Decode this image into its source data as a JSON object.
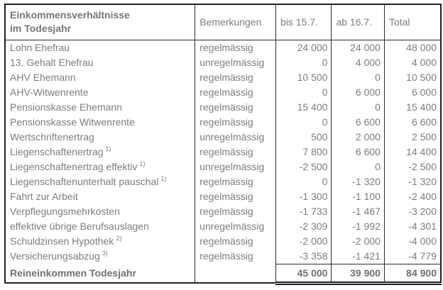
{
  "table": {
    "header": {
      "title_line1": "Einkommensverhältnisse",
      "title_line2": "im Todesjahr",
      "remarks": "Bemerkungen",
      "period1": "bis 15.7.",
      "period2": "ab 16.7.",
      "total": "Total"
    },
    "rows": [
      {
        "label": "Lohn Ehefrau",
        "sup": "",
        "remark": "regelmässig",
        "bis": "24 000",
        "ab": "24 000",
        "total": "48 000"
      },
      {
        "label": "13. Gehalt Ehefrau",
        "sup": "",
        "remark": "unregelmässig",
        "bis": "0",
        "ab": "4 000",
        "total": "4 000"
      },
      {
        "label": "AHV Ehemann",
        "sup": "",
        "remark": "regelmässig",
        "bis": "10 500",
        "ab": "0",
        "total": "10 500"
      },
      {
        "label": "AHV-Witwenrente",
        "sup": "",
        "remark": "regelmässig",
        "bis": "0",
        "ab": "6 000",
        "total": "6 000"
      },
      {
        "label": "Pensionskasse Ehemann",
        "sup": "",
        "remark": "regelmässig",
        "bis": "15 400",
        "ab": "0",
        "total": "15 400"
      },
      {
        "label": "Pensionskasse Witwenrente",
        "sup": "",
        "remark": "regelmässig",
        "bis": "0",
        "ab": "6 600",
        "total": "6 600"
      },
      {
        "label": "Wertschriftenertrag",
        "sup": "",
        "remark": "unregelmässig",
        "bis": "500",
        "ab": "2 000",
        "total": "2 500"
      },
      {
        "label": "Liegenschaftenertrag",
        "sup": "1)",
        "remark": "regelmässig",
        "bis": "7 800",
        "ab": "6 600",
        "total": "14 400"
      },
      {
        "label": "Liegenschaftenertrag effektiv",
        "sup": "1)",
        "remark": "unregelmässig",
        "bis": "-2 500",
        "ab": "0",
        "total": "-2 500"
      },
      {
        "label": "Liegenschaftenunterhalt pauschal",
        "sup": "1)",
        "remark": "regelmässig",
        "bis": "0",
        "ab": "-1 320",
        "total": "-1 320"
      },
      {
        "label": "Fahrt zur Arbeit",
        "sup": "",
        "remark": "regelmässig",
        "bis": "-1 300",
        "ab": "-1 100",
        "total": "-2 400"
      },
      {
        "label": "Verpflegungsmehrkosten",
        "sup": "",
        "remark": "regelmässig",
        "bis": "-1 733",
        "ab": "-1 467",
        "total": "-3 200"
      },
      {
        "label": "effektive übrige Berufsauslagen",
        "sup": "",
        "remark": "unregelmässig",
        "bis": "-2 309",
        "ab": "-1 992",
        "total": "-4 301"
      },
      {
        "label": "Schuldzinsen Hypothek",
        "sup": "2)",
        "remark": "regelmässig",
        "bis": "-2 000",
        "ab": "-2 000",
        "total": "-4 000"
      },
      {
        "label": "Versicherungsabzug",
        "sup": "3)",
        "remark": "regelmässig",
        "bis": "-3 358",
        "ab": "-1 421",
        "total": "-4 779"
      }
    ],
    "footer": {
      "label": "Reineinkommen Todesjahr",
      "remark": "",
      "bis": "45 000",
      "ab": "39 900",
      "total": "84 900"
    }
  },
  "colors": {
    "text": "#7d7d7d",
    "bold_text": "#6f6f6f",
    "border": "#222222",
    "background": "#ffffff"
  }
}
